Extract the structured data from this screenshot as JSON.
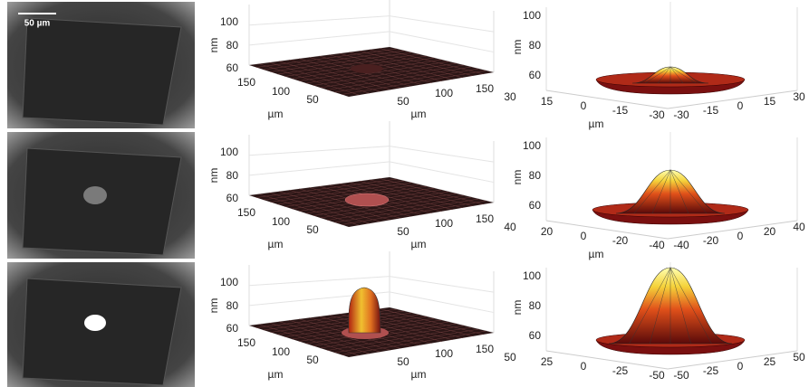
{
  "panels": [
    {
      "image": {
        "scale_bar": "50 µm"
      },
      "surface": {
        "z_label": "nm",
        "z_ticks": [
          100,
          80,
          60
        ],
        "left_ticks": [
          150,
          100,
          50
        ],
        "right_ticks": [
          50,
          100,
          150
        ],
        "axis_labels": [
          "µm",
          "µm"
        ]
      },
      "mesh": {
        "z_label": "nm",
        "z_ticks": [
          100,
          80,
          60
        ],
        "left_ticks": [
          30,
          15,
          0,
          -15,
          -30
        ],
        "right_ticks": [
          -30,
          -15,
          0,
          15,
          30
        ],
        "axis_labels": [
          "µm"
        ]
      }
    },
    {
      "image": {},
      "surface": {
        "z_label": "nm",
        "z_ticks": [
          100,
          80,
          60
        ],
        "left_ticks": [
          150,
          100,
          50
        ],
        "right_ticks": [
          50,
          100,
          150
        ],
        "axis_labels": [
          "µm",
          "µm"
        ]
      },
      "mesh": {
        "z_label": "nm",
        "z_ticks": [
          100,
          80,
          60
        ],
        "left_ticks": [
          40,
          20,
          0,
          -20,
          -40
        ],
        "right_ticks": [
          -40,
          -20,
          0,
          20,
          40
        ],
        "axis_labels": [
          "µm"
        ]
      }
    },
    {
      "image": {},
      "surface": {
        "z_label": "nm",
        "z_ticks": [
          100,
          80,
          60
        ],
        "left_ticks": [
          150,
          100,
          50
        ],
        "right_ticks": [
          50,
          100,
          150
        ],
        "axis_labels": [
          "µm",
          "µm"
        ]
      },
      "mesh": {
        "z_label": "nm",
        "z_ticks": [
          100,
          80,
          60
        ],
        "left_ticks": [
          50,
          25,
          0,
          -25,
          -50
        ],
        "right_ticks": [
          -50,
          -25,
          0,
          25,
          50
        ],
        "axis_labels": []
      }
    }
  ]
}
